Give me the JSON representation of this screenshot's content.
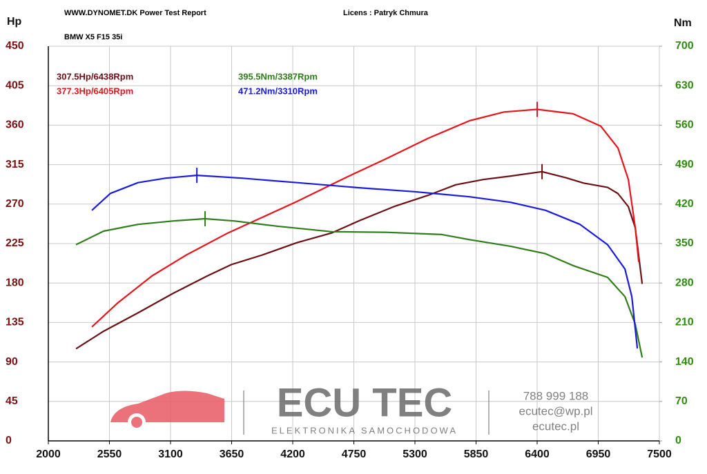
{
  "header": {
    "title": "WWW.DYNOMET.DK  Power Test Report",
    "license": "Licens :  Patryk Chmura",
    "vehicle": "BMW X5 F15 35i"
  },
  "watermark": {
    "brand": "ECU TEC",
    "tagline": "ELEKTRONIKA SAMOCHODOWA",
    "phone": "788 999 188",
    "email": "ecutec@wp.pl",
    "site": "ecutec.pl"
  },
  "chart_data": {
    "type": "line",
    "ylabel": "Hp",
    "y2label": "Nm",
    "xlim": [
      2000,
      7500
    ],
    "xticks": [
      2000,
      2550,
      3100,
      3650,
      4200,
      4750,
      5300,
      5850,
      6400,
      6950,
      7500
    ],
    "ylim": [
      0,
      450
    ],
    "yticks": [
      0,
      45,
      90,
      135,
      180,
      225,
      270,
      315,
      360,
      405,
      450
    ],
    "y2lim": [
      0,
      700
    ],
    "y2ticks": [
      0,
      70,
      140,
      210,
      280,
      350,
      420,
      490,
      560,
      630,
      700
    ],
    "grid": true,
    "series": [
      {
        "name": "307.5Hp/6438Rpm",
        "color": "#6b0f14",
        "axis": "y",
        "x": [
          2249,
          2497,
          2808,
          3119,
          3430,
          3647,
          3927,
          4238,
          4549,
          4797,
          5108,
          5418,
          5667,
          5915,
          6164,
          6444,
          6661,
          6817,
          7034,
          7127,
          7221,
          7283,
          7345
        ],
        "values": [
          105,
          125,
          146,
          168,
          188,
          201,
          212,
          226,
          237,
          251,
          267,
          280,
          292,
          298,
          302,
          307,
          300,
          294,
          289,
          282,
          267,
          243,
          179
        ]
      },
      {
        "name": "377.3Hp/6405Rpm",
        "color": "#e8141c",
        "axis": "y",
        "x": [
          2392,
          2622,
          2932,
          3243,
          3616,
          3927,
          4238,
          4673,
          5045,
          5418,
          5791,
          6102,
          6400,
          6723,
          6972,
          7127,
          7221,
          7283,
          7314
        ],
        "values": [
          130,
          157,
          188,
          212,
          237,
          255,
          273,
          300,
          322,
          345,
          365,
          375,
          378,
          373,
          359,
          334,
          298,
          243,
          204
        ]
      },
      {
        "name": "395.5Nm/3387Rpm",
        "color": "#2e7d1a",
        "axis": "y2",
        "x": [
          2249,
          2497,
          2808,
          3119,
          3411,
          3678,
          4051,
          4549,
          5045,
          5542,
          5791,
          6164,
          6475,
          6723,
          7034,
          7190,
          7283,
          7345
        ],
        "values": [
          348,
          372,
          384,
          390,
          394,
          390,
          381,
          371,
          370,
          366,
          357,
          345,
          332,
          311,
          290,
          256,
          207,
          148
        ]
      },
      {
        "name": "471.2Nm/3310Rpm",
        "color": "#1a1adf",
        "axis": "y2",
        "x": [
          2392,
          2559,
          2808,
          3057,
          3337,
          3741,
          4238,
          4797,
          5294,
          5791,
          6164,
          6475,
          6785,
          7034,
          7190,
          7252,
          7302
        ],
        "values": [
          409,
          439,
          458,
          466,
          471,
          466,
          458,
          449,
          442,
          433,
          423,
          409,
          384,
          348,
          305,
          256,
          164
        ]
      }
    ]
  }
}
